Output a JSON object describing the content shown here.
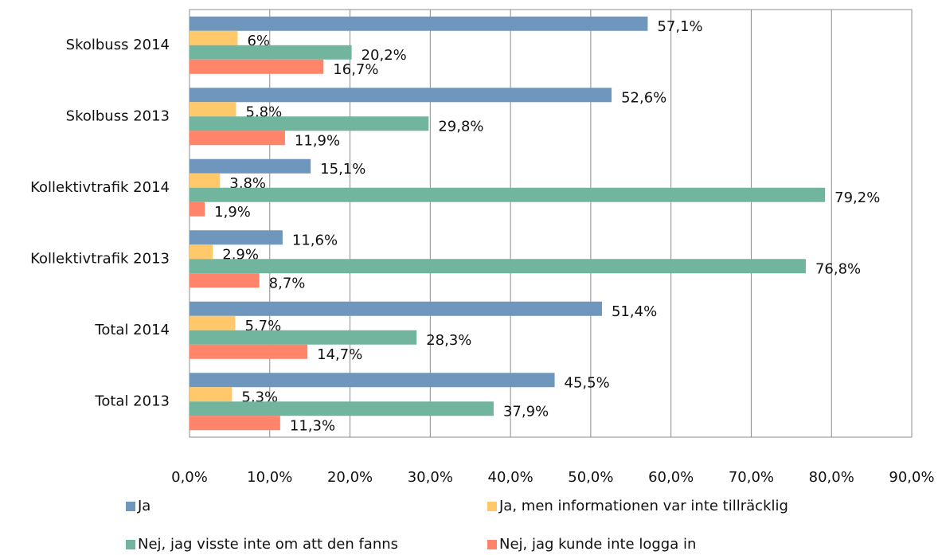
{
  "chart_data": {
    "type": "hbar",
    "categories": [
      "Skolbuss 2014",
      "Skolbuss 2013",
      "Kollektivtrafik 2014",
      "Kollektivtrafik 2013",
      "Total 2014",
      "Total 2013"
    ],
    "series": [
      {
        "name": "Ja",
        "color": "#6f96bc",
        "values": [
          57.1,
          52.6,
          15.1,
          11.6,
          51.4,
          45.5
        ],
        "value_labels": [
          "57,1%",
          "52,6%",
          "15,1%",
          "11,6%",
          "51,4%",
          "45,5%"
        ]
      },
      {
        "name": "Ja, men informationen var inte tillräcklig",
        "color": "#ffc86b",
        "values": [
          6,
          5.8,
          3.8,
          2.9,
          5.7,
          5.3
        ],
        "value_labels": [
          "6%",
          "5,8%",
          "3,8%",
          "2,9%",
          "5,7%",
          "5,3%"
        ]
      },
      {
        "name": "Nej, jag visste inte om att den fanns",
        "color": "#72b59e",
        "values": [
          20.2,
          29.8,
          79.2,
          76.8,
          28.3,
          37.9
        ],
        "value_labels": [
          "20,2%",
          "29,8%",
          "79,2%",
          "76,8%",
          "28,3%",
          "37,9%"
        ]
      },
      {
        "name": "Nej, jag kunde inte logga in",
        "color": "#ff8469",
        "values": [
          16.7,
          11.9,
          1.9,
          8.7,
          14.7,
          11.3
        ],
        "value_labels": [
          "16,7%",
          "11,9%",
          "1,9%",
          "8,7%",
          "14,7%",
          "11,3%"
        ]
      }
    ],
    "xlim": [
      0,
      90
    ],
    "xticks": [
      {
        "value": 0,
        "label": "0,0%"
      },
      {
        "value": 10,
        "label": "10,0%"
      },
      {
        "value": 20,
        "label": "20,0%"
      },
      {
        "value": 30,
        "label": "30,0%"
      },
      {
        "value": 40,
        "label": "40,0%"
      },
      {
        "value": 50,
        "label": "50,0%"
      },
      {
        "value": 60,
        "label": "60,0%"
      },
      {
        "value": 70,
        "label": "70,0%"
      },
      {
        "value": 80,
        "label": "80,0%"
      },
      {
        "value": 90,
        "label": "90,0%"
      }
    ],
    "grid": true,
    "legend": "bottom"
  }
}
